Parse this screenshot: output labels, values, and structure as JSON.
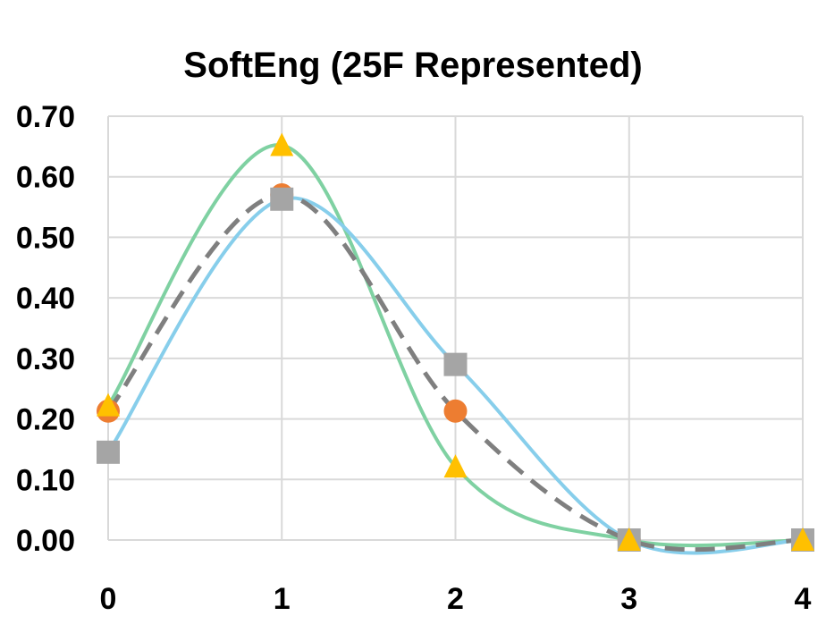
{
  "chart_data": {
    "type": "scatter",
    "title": "SoftEng (25F Represented)",
    "xlabel": "",
    "ylabel": "",
    "xlim": [
      0,
      4
    ],
    "ylim": [
      0,
      0.7
    ],
    "x_ticks": [
      "0",
      "1",
      "2",
      "3",
      "4"
    ],
    "y_ticks": [
      "0.00",
      "0.10",
      "0.20",
      "0.30",
      "0.40",
      "0.50",
      "0.60",
      "0.70"
    ],
    "grid": true,
    "legend": "none",
    "x": [
      0,
      1,
      2,
      3,
      4
    ],
    "series": [
      {
        "values": [
          0.213,
          0.57,
          0.213,
          0.0,
          0.0
        ],
        "color": "#ed7d31",
        "marker": "circle",
        "line_color": "#7f7f7f",
        "line_style": "dashed"
      },
      {
        "values": [
          0.145,
          0.563,
          0.29,
          0.0,
          0.0
        ],
        "color": "#a5a5a5",
        "marker": "square",
        "line_color": "#87ceeb",
        "line_style": "solid"
      },
      {
        "values": [
          0.222,
          0.652,
          0.121,
          0.0,
          0.0
        ],
        "color": "#ffc000",
        "marker": "triangle",
        "line_color": "#7fd1a2",
        "line_style": "solid"
      }
    ]
  }
}
